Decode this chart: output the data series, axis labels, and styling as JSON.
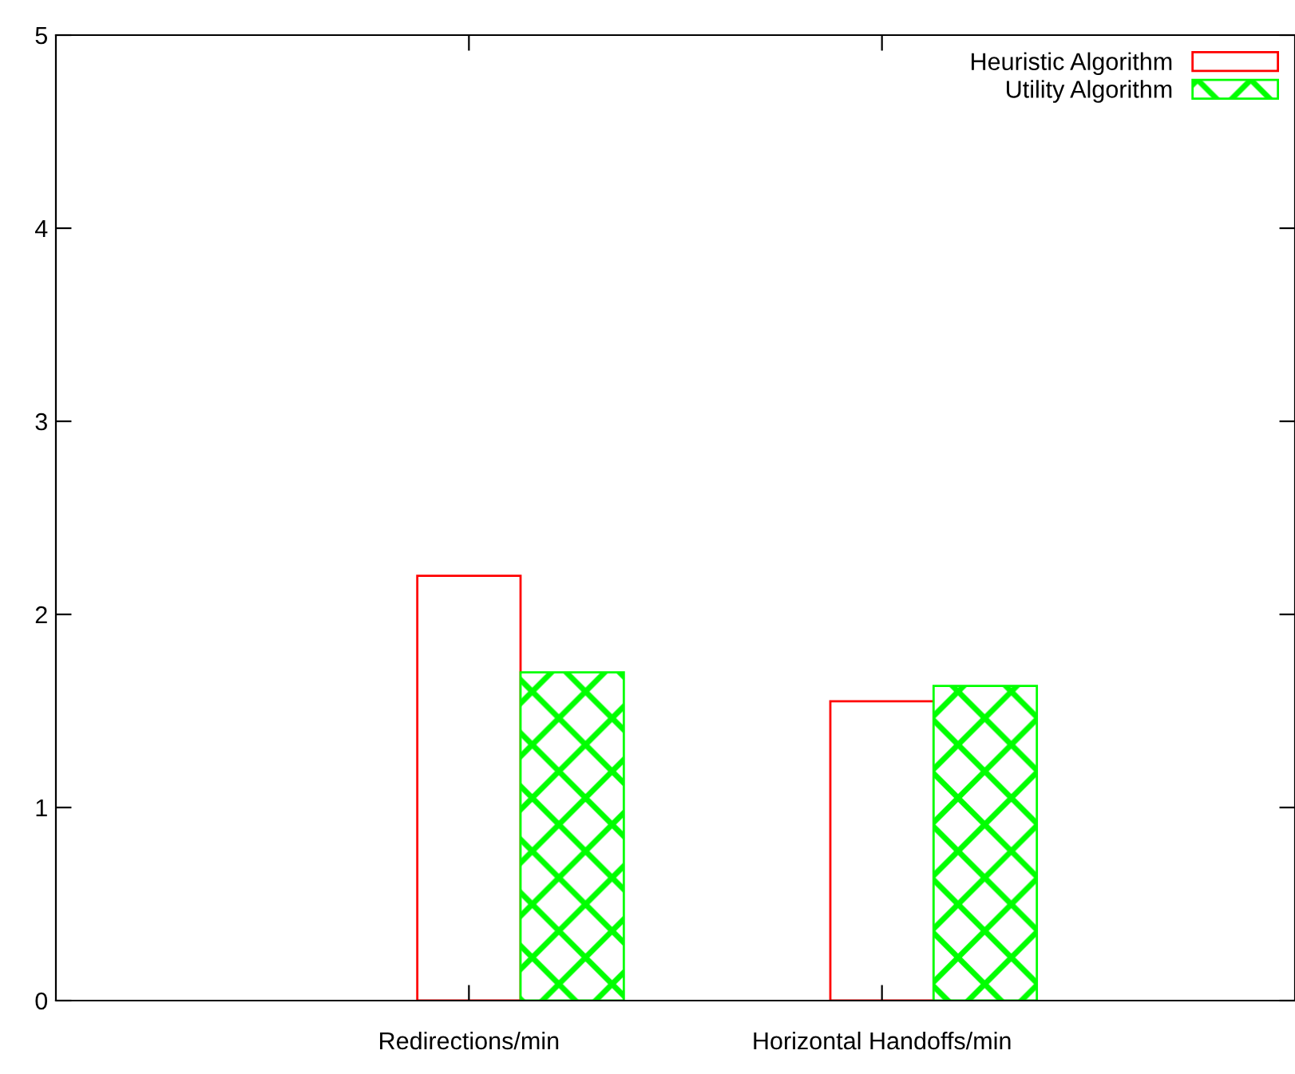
{
  "chart_data": {
    "type": "bar",
    "categories": [
      "Redirections/min",
      "Horizontal Handoffs/min"
    ],
    "series": [
      {
        "name": "Heuristic Algorithm",
        "color": "#ff0000",
        "values": [
          2.2,
          1.55
        ]
      },
      {
        "name": "Utility Algorithm",
        "color": "#00ff00",
        "values": [
          1.7,
          1.63
        ]
      }
    ],
    "ylim": [
      0,
      5
    ],
    "yticks": [
      0,
      1,
      2,
      3,
      4,
      5
    ],
    "grid": false,
    "legend": "top right"
  }
}
